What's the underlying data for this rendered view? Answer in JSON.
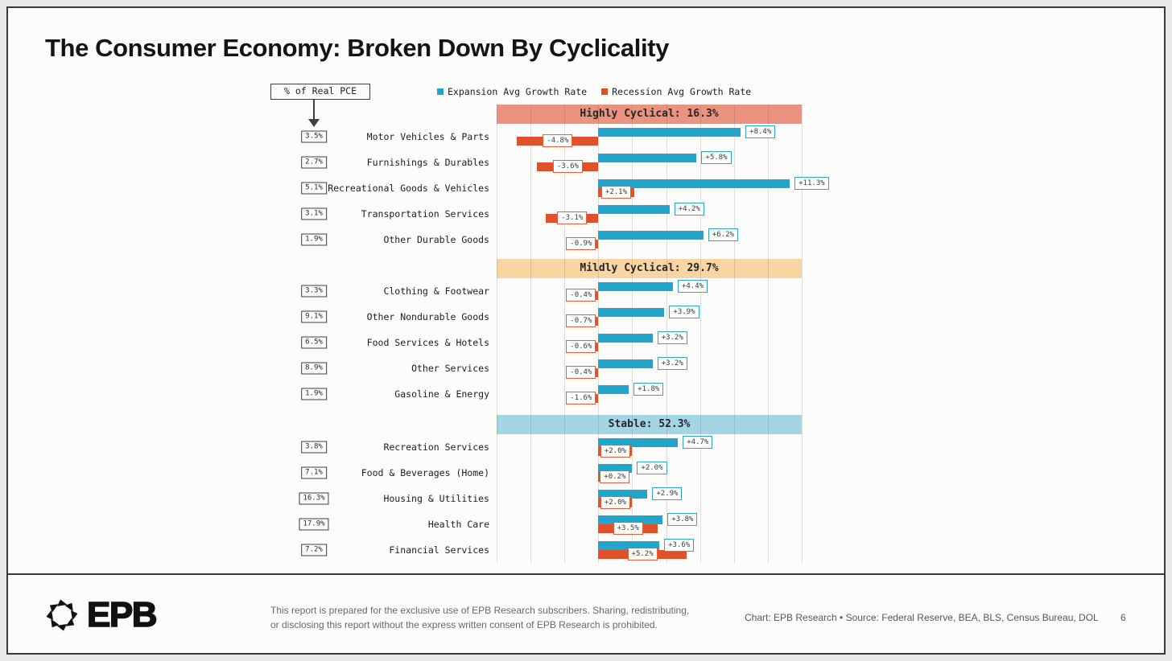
{
  "title": "The Consumer Economy: Broken Down By Cyclicality",
  "annotation_box": {
    "label": "% of Real PCE"
  },
  "legend": {
    "expansion": {
      "label": "Expansion Avg Growth Rate",
      "color": "#25A4CA"
    },
    "recession": {
      "label": "Recession Avg Growth Rate",
      "color": "#E0512B"
    }
  },
  "colors": {
    "expansion_bar": "#25A4CA",
    "recession_bar": "#E0512B",
    "highly_cyclical_band": "#EB9381",
    "mildly_cyclical_band": "#F8D5A3",
    "stable_band": "#A3D5E5"
  },
  "chart_data": {
    "type": "bar",
    "orientation": "horizontal",
    "unit": "percent",
    "xlim": [
      -6,
      12
    ],
    "gridline_step": 2,
    "grid": true,
    "series": [
      "Expansion Avg Growth Rate",
      "Recession Avg Growth Rate"
    ],
    "sections": [
      {
        "header": "Highly Cyclical: 16.3%",
        "band_color": "#EB9381",
        "rows": [
          {
            "label": "Motor Vehicles & Parts",
            "pce_share": "3.5%",
            "expansion": 8.4,
            "recession": -4.8,
            "expansion_label": "+8.4%",
            "recession_label": "-4.8%"
          },
          {
            "label": "Furnishings & Durables",
            "pce_share": "2.7%",
            "expansion": 5.8,
            "recession": -3.6,
            "expansion_label": "+5.8%",
            "recession_label": "-3.6%"
          },
          {
            "label": "Recreational Goods & Vehicles",
            "pce_share": "5.1%",
            "expansion": 11.3,
            "recession": 2.1,
            "expansion_label": "+11.3%",
            "recession_label": "+2.1%"
          },
          {
            "label": "Transportation Services",
            "pce_share": "3.1%",
            "expansion": 4.2,
            "recession": -3.1,
            "expansion_label": "+4.2%",
            "recession_label": "-3.1%"
          },
          {
            "label": "Other Durable Goods",
            "pce_share": "1.9%",
            "expansion": 6.2,
            "recession": -0.9,
            "expansion_label": "+6.2%",
            "recession_label": "-0.9%"
          }
        ]
      },
      {
        "header": "Mildly Cyclical: 29.7%",
        "band_color": "#F8D5A3",
        "rows": [
          {
            "label": "Clothing & Footwear",
            "pce_share": "3.3%",
            "expansion": 4.4,
            "recession": -0.4,
            "expansion_label": "+4.4%",
            "recession_label": "-0.4%"
          },
          {
            "label": "Other Nondurable Goods",
            "pce_share": "9.1%",
            "expansion": 3.9,
            "recession": -0.7,
            "expansion_label": "+3.9%",
            "recession_label": "-0.7%"
          },
          {
            "label": "Food Services & Hotels",
            "pce_share": "6.5%",
            "expansion": 3.2,
            "recession": -0.6,
            "expansion_label": "+3.2%",
            "recession_label": "-0.6%"
          },
          {
            "label": "Other Services",
            "pce_share": "8.9%",
            "expansion": 3.2,
            "recession": -0.4,
            "expansion_label": "+3.2%",
            "recession_label": "-0.4%"
          },
          {
            "label": "Gasoline & Energy",
            "pce_share": "1.9%",
            "expansion": 1.8,
            "recession": -1.6,
            "expansion_label": "+1.8%",
            "recession_label": "-1.6%"
          }
        ]
      },
      {
        "header": "Stable: 52.3%",
        "band_color": "#A3D5E5",
        "rows": [
          {
            "label": "Recreation Services",
            "pce_share": "3.8%",
            "expansion": 4.7,
            "recession": 2.0,
            "expansion_label": "+4.7%",
            "recession_label": "+2.0%"
          },
          {
            "label": "Food & Beverages (Home)",
            "pce_share": "7.1%",
            "expansion": 2.0,
            "recession": 0.2,
            "expansion_label": "+2.0%",
            "recession_label": "+0.2%"
          },
          {
            "label": "Housing & Utilities",
            "pce_share": "16.3%",
            "expansion": 2.9,
            "recession": 2.0,
            "expansion_label": "+2.9%",
            "recession_label": "+2.0%"
          },
          {
            "label": "Health Care",
            "pce_share": "17.9%",
            "expansion": 3.8,
            "recession": 3.5,
            "expansion_label": "+3.8%",
            "recession_label": "+3.5%"
          },
          {
            "label": "Financial Services",
            "pce_share": "7.2%",
            "expansion": 3.6,
            "recession": 5.2,
            "expansion_label": "+3.6%",
            "recession_label": "+5.2%"
          }
        ]
      }
    ]
  },
  "footer": {
    "logo_text": "EPB",
    "disclaimer_line1": "This report is prepared for the exclusive use of EPB Research subscribers. Sharing, redistributing,",
    "disclaimer_line2": "or disclosing this report without the express written consent of EPB Research is prohibited.",
    "credit": "Chart: EPB Research  •  Source: Federal Reserve, BEA, BLS, Census Bureau, DOL",
    "page_number": "6"
  }
}
